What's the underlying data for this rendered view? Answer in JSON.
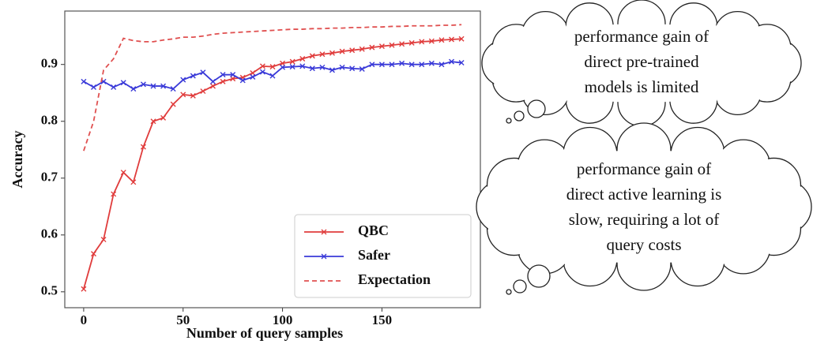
{
  "chart_data": {
    "type": "line",
    "xlabel": "Number of query samples",
    "ylabel": "Accuracy",
    "x": [
      0,
      5,
      10,
      15,
      20,
      25,
      30,
      35,
      40,
      45,
      50,
      55,
      60,
      65,
      70,
      75,
      80,
      85,
      90,
      95,
      100,
      105,
      110,
      115,
      120,
      125,
      130,
      135,
      140,
      145,
      150,
      155,
      160,
      165,
      170,
      175,
      180,
      185,
      190
    ],
    "series": [
      {
        "name": "QBC",
        "color": "#e03c3c",
        "marker": "x",
        "dashed": false,
        "values": [
          0.505,
          0.567,
          0.592,
          0.672,
          0.71,
          0.693,
          0.755,
          0.8,
          0.806,
          0.83,
          0.847,
          0.845,
          0.853,
          0.862,
          0.87,
          0.875,
          0.877,
          0.885,
          0.897,
          0.896,
          0.902,
          0.905,
          0.91,
          0.915,
          0.918,
          0.92,
          0.923,
          0.925,
          0.927,
          0.93,
          0.932,
          0.934,
          0.936,
          0.938,
          0.94,
          0.941,
          0.943,
          0.944,
          0.945
        ]
      },
      {
        "name": "Safer",
        "color": "#3a3ad8",
        "marker": "x",
        "dashed": false,
        "values": [
          0.87,
          0.86,
          0.87,
          0.86,
          0.868,
          0.857,
          0.865,
          0.862,
          0.862,
          0.857,
          0.873,
          0.88,
          0.886,
          0.87,
          0.882,
          0.882,
          0.872,
          0.878,
          0.887,
          0.88,
          0.895,
          0.896,
          0.897,
          0.893,
          0.895,
          0.89,
          0.895,
          0.893,
          0.892,
          0.9,
          0.9,
          0.9,
          0.902,
          0.9,
          0.9,
          0.902,
          0.9,
          0.905,
          0.903
        ]
      },
      {
        "name": "Expectation",
        "color": "#e05050",
        "marker": null,
        "dashed": true,
        "values": [
          0.748,
          0.8,
          0.89,
          0.91,
          0.946,
          0.942,
          0.94,
          0.94,
          0.943,
          0.945,
          0.948,
          0.948,
          0.95,
          0.953,
          0.955,
          0.956,
          0.957,
          0.958,
          0.959,
          0.96,
          0.961,
          0.962,
          0.962,
          0.963,
          0.963,
          0.964,
          0.964,
          0.965,
          0.965,
          0.966,
          0.966,
          0.967,
          0.967,
          0.968,
          0.968,
          0.968,
          0.969,
          0.969,
          0.97
        ]
      }
    ],
    "xlim": [
      -9.5,
      199.5
    ],
    "ylim": [
      0.472,
      0.994
    ],
    "xticks": [
      0,
      50,
      100,
      150
    ],
    "yticks": [
      0.5,
      0.6,
      0.7,
      0.8,
      0.9
    ],
    "legend": "lower right"
  },
  "annotations": [
    {
      "lines": [
        "performance gain of",
        "direct pre-trained",
        "models is limited"
      ]
    },
    {
      "lines": [
        "performance gain of",
        "direct active learning is",
        "slow, requiring a lot of",
        "query costs"
      ]
    }
  ]
}
